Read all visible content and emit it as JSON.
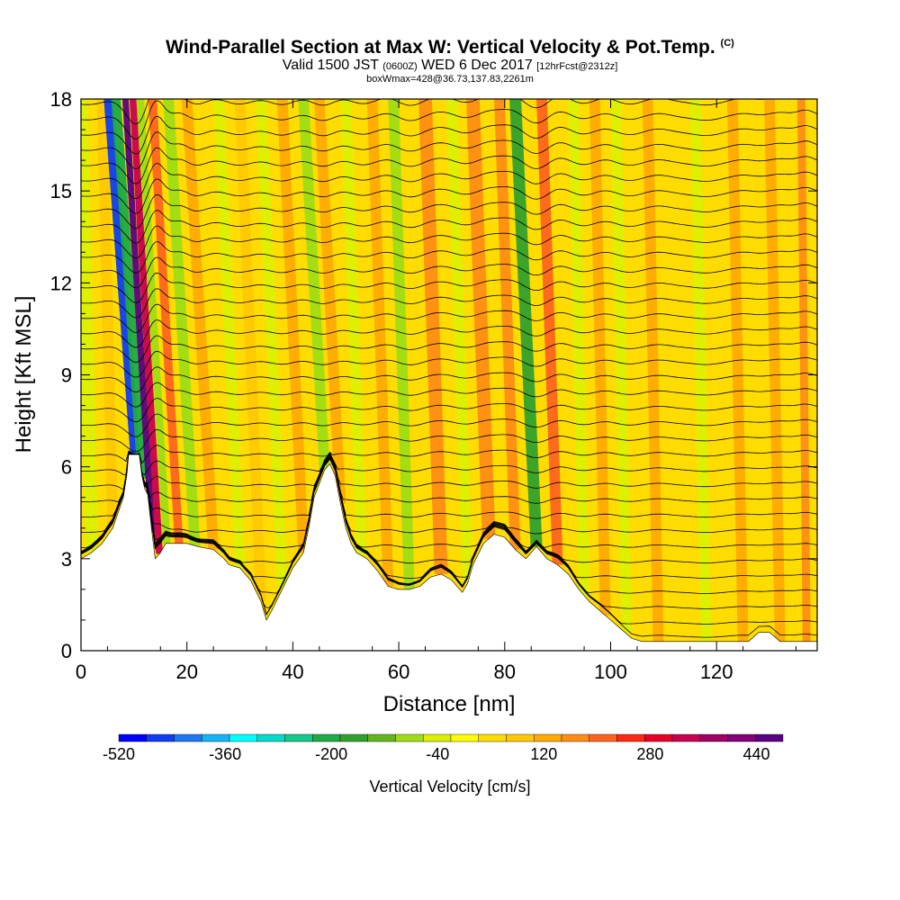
{
  "title": {
    "main": "Wind-Parallel Section at Max W: Vertical Velocity & Pot.Temp.",
    "copyright": "(C)",
    "valid_prefix": "Valid 1500 JST",
    "valid_utc": "(0600Z)",
    "valid_date": "WED 6 Dec 2017",
    "forecast": "[12hrFcst@2312z]",
    "box_info": "boxWmax=428@36.73,137.83,2261m"
  },
  "colors": {
    "colorbar": [
      "#0000ff",
      "#0f3cf0",
      "#1e78f0",
      "#14b4f5",
      "#00ffff",
      "#00dcc8",
      "#14c88c",
      "#1eaa46",
      "#32a02d",
      "#64b41e",
      "#a0dc14",
      "#dcf000",
      "#ffff00",
      "#ffdc00",
      "#ffc800",
      "#ffaa00",
      "#ff8c14",
      "#ff641e",
      "#ff2814",
      "#e60028",
      "#c80050",
      "#a00064",
      "#820078",
      "#5a0082"
    ],
    "terrain": "#ffffff",
    "contour": "#000000"
  },
  "chart_data": {
    "type": "heatmap",
    "xlabel": "Distance [nm]",
    "ylabel": "Height [Kft MSL]",
    "xlim": [
      0,
      139
    ],
    "ylim": [
      0,
      18
    ],
    "x_ticks": [
      "0",
      "20",
      "40",
      "60",
      "80",
      "100",
      "120"
    ],
    "y_ticks": [
      "0",
      "3",
      "6",
      "9",
      "12",
      "15",
      "18"
    ],
    "colorbar": {
      "label": "Vertical Velocity [cm/s]",
      "min": -520,
      "max": 480,
      "step": 40,
      "tick_labels": [
        "-520",
        "-360",
        "-200",
        "-40",
        "120",
        "280",
        "440"
      ],
      "tick_values": [
        -520,
        -360,
        -200,
        -40,
        120,
        280,
        440
      ]
    },
    "terrain_profile": {
      "x": [
        0,
        2,
        4,
        6,
        7,
        8,
        8.7,
        9,
        11,
        11.5,
        12,
        12.6,
        13.3,
        14,
        15,
        16,
        18,
        20,
        22,
        25,
        27,
        28,
        30,
        32,
        34,
        35,
        36,
        38,
        40,
        42,
        43,
        44,
        46,
        47,
        48,
        49,
        50,
        51,
        52,
        54,
        56,
        58,
        60,
        62,
        64,
        66,
        68,
        70,
        72,
        73,
        74,
        76,
        78,
        80,
        82,
        84,
        85,
        86,
        88,
        90,
        92,
        94,
        96,
        98,
        100,
        102,
        104,
        106,
        108,
        110,
        112,
        114,
        116,
        118,
        120,
        122,
        124,
        126,
        128,
        130,
        132,
        134,
        136,
        138,
        139
      ],
      "y": [
        3.0,
        3.2,
        3.5,
        4.0,
        4.5,
        5.0,
        5.8,
        6.4,
        6.4,
        5.7,
        5.3,
        5.1,
        4.0,
        3.0,
        3.2,
        3.5,
        3.5,
        3.5,
        3.4,
        3.3,
        3.0,
        2.8,
        2.7,
        2.3,
        1.6,
        1.0,
        1.3,
        2.0,
        2.7,
        3.2,
        4.0,
        5.0,
        5.9,
        6.1,
        5.7,
        4.8,
        4.0,
        3.5,
        3.2,
        3.0,
        2.6,
        2.1,
        2.0,
        2.0,
        2.1,
        2.4,
        2.5,
        2.3,
        1.9,
        2.2,
        2.8,
        3.5,
        3.8,
        3.7,
        3.3,
        3.0,
        3.2,
        3.4,
        3.0,
        2.8,
        2.5,
        2.0,
        1.6,
        1.3,
        1.0,
        0.7,
        0.4,
        0.3,
        0.3,
        0.3,
        0.3,
        0.3,
        0.3,
        0.3,
        0.3,
        0.3,
        0.3,
        0.3,
        0.6,
        0.6,
        0.3,
        0.3,
        0.3,
        0.3,
        0.3
      ]
    },
    "vertical_velocity_bands": [
      {
        "center_x": 2,
        "width": 2.5,
        "value": -60,
        "lean": 2
      },
      {
        "center_x": 6,
        "width": 2.0,
        "value": 60,
        "lean": 2
      },
      {
        "center_x": 10.2,
        "width": 1.8,
        "value": -460,
        "lean": 5
      },
      {
        "center_x": 11.6,
        "width": 1.8,
        "value": -220,
        "lean": 5
      },
      {
        "center_x": 13.4,
        "width": 1.2,
        "value": 440,
        "lean": 5
      },
      {
        "center_x": 14.8,
        "width": 1.3,
        "value": 300,
        "lean": 5
      },
      {
        "center_x": 16.2,
        "width": 1.4,
        "value": -120,
        "lean": 5
      },
      {
        "center_x": 18.5,
        "width": 1.6,
        "value": 160,
        "lean": 5
      },
      {
        "center_x": 21.5,
        "width": 2.0,
        "value": -100,
        "lean": 5
      },
      {
        "center_x": 25,
        "width": 2.0,
        "value": 80,
        "lean": 5
      },
      {
        "center_x": 30,
        "width": 2.0,
        "value": -60,
        "lean": 4
      },
      {
        "center_x": 34,
        "width": 2.0,
        "value": 60,
        "lean": 4
      },
      {
        "center_x": 38,
        "width": 2.0,
        "value": -80,
        "lean": 4
      },
      {
        "center_x": 42,
        "width": 2.0,
        "value": 80,
        "lean": 4
      },
      {
        "center_x": 46,
        "width": 2.0,
        "value": -120,
        "lean": 4
      },
      {
        "center_x": 49,
        "width": 2.0,
        "value": 100,
        "lean": 4
      },
      {
        "center_x": 53,
        "width": 2.0,
        "value": -60,
        "lean": 3
      },
      {
        "center_x": 58,
        "width": 2.0,
        "value": 100,
        "lean": 3
      },
      {
        "center_x": 62,
        "width": 2.0,
        "value": -100,
        "lean": 3
      },
      {
        "center_x": 68,
        "width": 2.5,
        "value": 120,
        "lean": 3
      },
      {
        "center_x": 73,
        "width": 2.0,
        "value": -80,
        "lean": 3
      },
      {
        "center_x": 77,
        "width": 2.5,
        "value": 140,
        "lean": 3
      },
      {
        "center_x": 82,
        "width": 2.0,
        "value": 140,
        "lean": 3
      },
      {
        "center_x": 86,
        "width": 2.2,
        "value": -180,
        "lean": 4
      },
      {
        "center_x": 90,
        "width": 2.0,
        "value": 160,
        "lean": 3
      },
      {
        "center_x": 95,
        "width": 2.0,
        "value": -60,
        "lean": 2
      },
      {
        "center_x": 99,
        "width": 2.0,
        "value": 100,
        "lean": 2
      },
      {
        "center_x": 103,
        "width": 2.0,
        "value": -60,
        "lean": 2
      },
      {
        "center_x": 109,
        "width": 2.0,
        "value": 80,
        "lean": 2
      },
      {
        "center_x": 118,
        "width": 2.0,
        "value": -60,
        "lean": 2
      },
      {
        "center_x": 125,
        "width": 2.0,
        "value": 80,
        "lean": 2
      },
      {
        "center_x": 132,
        "width": 2.0,
        "value": 100,
        "lean": 2
      },
      {
        "center_x": 137,
        "width": 1.5,
        "value": 140,
        "lean": 1
      }
    ],
    "theta_contour_levels": [
      0.4,
      0.9,
      1.4,
      1.9,
      2.4,
      2.9,
      3.4,
      3.9,
      4.4,
      4.9,
      5.4,
      5.9,
      6.4,
      6.9,
      7.4,
      7.9,
      8.4,
      8.9,
      9.4,
      9.9,
      10.4,
      10.9,
      11.4,
      11.9,
      12.4,
      12.9,
      13.4,
      13.9,
      14.4,
      14.9,
      15.4,
      15.9,
      16.4,
      16.9,
      17.4,
      17.9
    ]
  }
}
